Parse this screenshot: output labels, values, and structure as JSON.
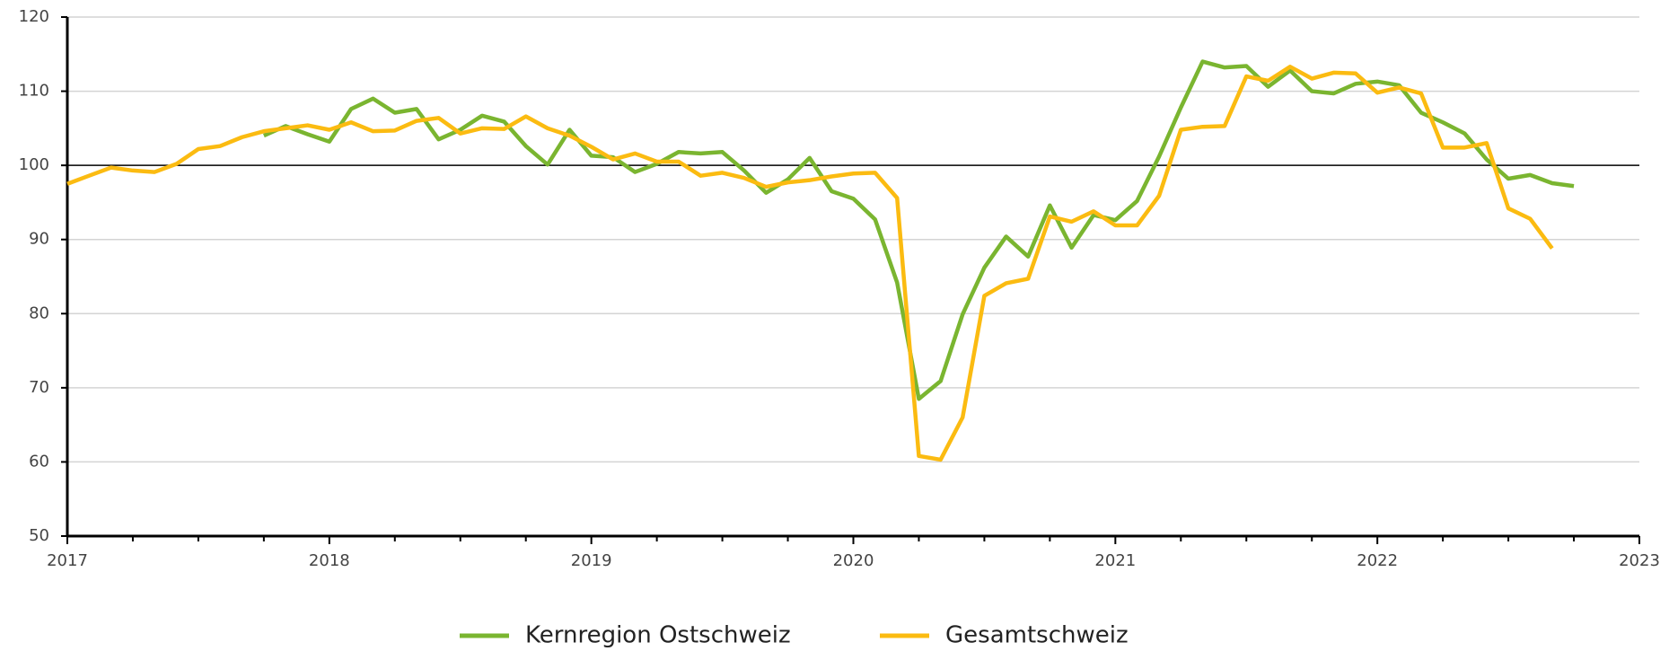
{
  "chart_data": {
    "type": "line",
    "x": [
      2017,
      2017.083,
      2017.167,
      2017.25,
      2017.333,
      2017.417,
      2017.5,
      2017.583,
      2017.667,
      2017.75,
      2017.833,
      2017.917,
      2018,
      2018.083,
      2018.167,
      2018.25,
      2018.333,
      2018.417,
      2018.5,
      2018.583,
      2018.667,
      2018.75,
      2018.833,
      2018.917,
      2019,
      2019.083,
      2019.167,
      2019.25,
      2019.333,
      2019.417,
      2019.5,
      2019.583,
      2019.667,
      2019.75,
      2019.833,
      2019.917,
      2020,
      2020.083,
      2020.167,
      2020.25,
      2020.333,
      2020.417,
      2020.5,
      2020.583,
      2020.667,
      2020.75,
      2020.833,
      2020.917,
      2021,
      2021.083,
      2021.167,
      2021.25,
      2021.333,
      2021.417,
      2021.5,
      2021.583,
      2021.667,
      2021.75,
      2021.833,
      2021.917,
      2022,
      2022.083,
      2022.167,
      2022.25,
      2022.333,
      2022.417,
      2022.5,
      2022.583,
      2022.667,
      2022.75
    ],
    "series": [
      {
        "name": "Kernregion Ostschweiz",
        "color": "#7ab530",
        "values": [
          null,
          null,
          null,
          null,
          null,
          null,
          null,
          null,
          null,
          104,
          105.3,
          104.2,
          103.2,
          107.6,
          109,
          107.1,
          107.6,
          103.5,
          104.8,
          106.7,
          105.9,
          102.6,
          100.1,
          104.8,
          101.3,
          101.1,
          99.1,
          100.2,
          101.8,
          101.6,
          101.8,
          99.3,
          96.3,
          98.1,
          101,
          96.5,
          95.5,
          92.7,
          84.2,
          68.5,
          70.9,
          79.9,
          86.2,
          90.4,
          87.7,
          94.6,
          88.9,
          93.3,
          92.6,
          95.2,
          101.2,
          107.8,
          114,
          113.2,
          113.4,
          110.6,
          112.8,
          110,
          109.7,
          111,
          111.3,
          110.8,
          107.1,
          105.8,
          104.3,
          100.8,
          98.2,
          98.7,
          97.6,
          97.2
        ]
      },
      {
        "name": "Gesamtschweiz",
        "color": "#fbbb11",
        "values": [
          97.5,
          98.6,
          99.7,
          99.3,
          99.1,
          100.2,
          102.2,
          102.6,
          103.8,
          104.6,
          105,
          105.4,
          104.8,
          105.8,
          104.6,
          104.7,
          106,
          106.4,
          104.3,
          105,
          104.9,
          106.6,
          105,
          104,
          102.5,
          100.8,
          101.6,
          100.5,
          100.5,
          98.6,
          99,
          98.3,
          97.1,
          97.7,
          98,
          98.5,
          98.9,
          99,
          95.6,
          60.8,
          60.3,
          66,
          82.4,
          84.1,
          84.7,
          93.1,
          92.4,
          93.8,
          91.9,
          91.9,
          95.9,
          104.8,
          105.2,
          105.3,
          112,
          111.4,
          113.3,
          111.7,
          112.5,
          112.4,
          109.8,
          110.5,
          109.7,
          102.4,
          102.4,
          103,
          94.2,
          92.8,
          88.8,
          null
        ]
      }
    ],
    "xlim": [
      2017,
      2023
    ],
    "xticks": [
      2017,
      2018,
      2019,
      2020,
      2021,
      2022,
      2023
    ],
    "xminorticks": [
      2017.25,
      2017.5,
      2017.75,
      2018.25,
      2018.5,
      2018.75,
      2019.25,
      2019.5,
      2019.75,
      2020.25,
      2020.5,
      2020.75,
      2021.25,
      2021.5,
      2021.75,
      2022.25,
      2022.5,
      2022.75
    ],
    "ylim": [
      50,
      120
    ],
    "yticks": [
      50,
      60,
      70,
      80,
      90,
      100,
      110,
      120
    ],
    "reference_line": 100,
    "grid": true,
    "legend": "bottom"
  }
}
